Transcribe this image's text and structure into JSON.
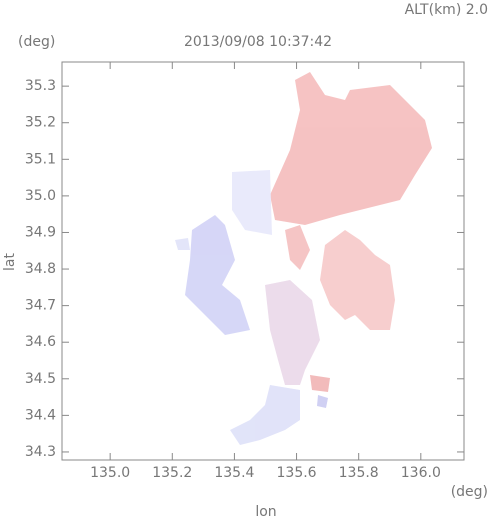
{
  "chart_data": {
    "type": "map",
    "title": "2013/09/08 10:37:42",
    "header": "ALT(km)  2.0",
    "y_unit": "(deg)",
    "x_unit": "(deg)",
    "xlabel": "lon",
    "ylabel": "lat",
    "xlim": [
      134.845,
      136.139
    ],
    "ylim": [
      34.278,
      35.366
    ],
    "xticks": [
      {
        "value": 135,
        "label": "135.0"
      },
      135.2,
      135.4,
      135.6,
      135.8,
      {
        "value": 136,
        "label": "136.0"
      }
    ],
    "yticks": [
      34.3,
      34.4,
      34.5,
      34.6,
      34.7,
      34.8,
      34.9,
      {
        "value": 35,
        "label": "35.0"
      },
      35.1,
      35.2,
      35.3
    ]
  }
}
